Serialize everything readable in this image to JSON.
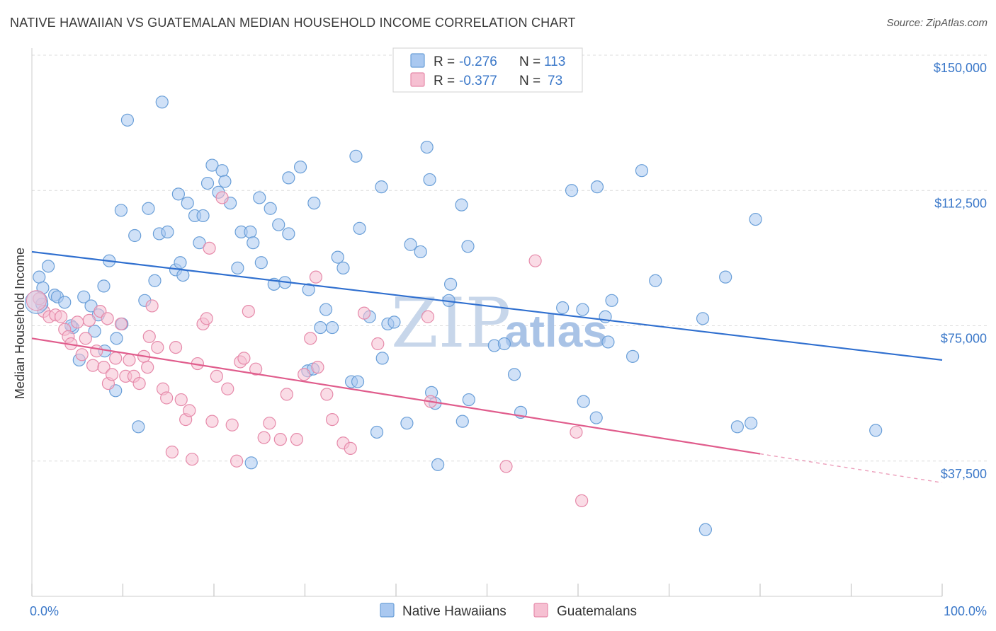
{
  "title": "NATIVE HAWAIIAN VS GUATEMALAN MEDIAN HOUSEHOLD INCOME CORRELATION CHART",
  "source": "Source: ZipAtlas.com",
  "watermark": {
    "zip": "ZIP",
    "atlas": "atlas"
  },
  "legend": {
    "rows": [
      {
        "r_label": "R =",
        "r_value": "-0.276",
        "n_label": "N =",
        "n_value": "113",
        "color": "#a9c8f0",
        "stroke": "#6a9fd8"
      },
      {
        "r_label": "R =",
        "r_value": "-0.377",
        "n_label": "N =",
        "n_value": "73",
        "color": "#f6c0d2",
        "stroke": "#e68aaa"
      }
    ]
  },
  "bottom_legend": [
    {
      "label": "Native Hawaiians",
      "color": "#a9c8f0",
      "stroke": "#6a9fd8"
    },
    {
      "label": "Guatemalans",
      "color": "#f6c0d2",
      "stroke": "#e68aaa"
    }
  ],
  "chart_data": {
    "type": "scatter",
    "title": "NATIVE HAWAIIAN VS GUATEMALAN MEDIAN HOUSEHOLD INCOME CORRELATION CHART",
    "xlabel": "",
    "ylabel": "Median Household Income",
    "xlim": [
      0,
      100
    ],
    "ylim": [
      0,
      155000
    ],
    "x_tick_labels": [
      "0.0%",
      "100.0%"
    ],
    "y_ticks": [
      37500,
      75000,
      112500,
      150000
    ],
    "y_tick_labels": [
      "$37,500",
      "$75,000",
      "$112,500",
      "$150,000"
    ],
    "grid": true,
    "legend_position": "top-center",
    "series": [
      {
        "name": "Native Hawaiians",
        "color": "#6a9fd8",
        "fill": "#a9c8f0",
        "trend": {
          "x": [
            0,
            100
          ],
          "y": [
            95500,
            65500
          ],
          "color": "#2f6fcf"
        },
        "points": [
          [
            10.5,
            132000
          ],
          [
            14.3,
            137000
          ],
          [
            9.8,
            107000
          ],
          [
            11.3,
            100000
          ],
          [
            12.8,
            107500
          ],
          [
            14.0,
            100500
          ],
          [
            14.9,
            101000
          ],
          [
            16.1,
            111500
          ],
          [
            17.1,
            109000
          ],
          [
            17.9,
            105500
          ],
          [
            18.8,
            105500
          ],
          [
            18.4,
            98000
          ],
          [
            19.3,
            114500
          ],
          [
            19.8,
            119500
          ],
          [
            20.5,
            112000
          ],
          [
            20.9,
            118000
          ],
          [
            21.2,
            115000
          ],
          [
            21.8,
            109000
          ],
          [
            23.0,
            101000
          ],
          [
            24.0,
            101000
          ],
          [
            24.3,
            98000
          ],
          [
            25.0,
            110500
          ],
          [
            26.2,
            107500
          ],
          [
            27.1,
            103000
          ],
          [
            28.2,
            100500
          ],
          [
            28.2,
            116000
          ],
          [
            29.5,
            119000
          ],
          [
            31.0,
            109000
          ],
          [
            35.6,
            122000
          ],
          [
            36.0,
            102000
          ],
          [
            38.4,
            113500
          ],
          [
            41.6,
            97500
          ],
          [
            42.7,
            95500
          ],
          [
            43.4,
            124500
          ],
          [
            43.7,
            115500
          ],
          [
            47.2,
            108500
          ],
          [
            47.9,
            97000
          ],
          [
            59.3,
            112500
          ],
          [
            62.1,
            113500
          ],
          [
            67.0,
            118000
          ],
          [
            79.5,
            104500
          ],
          [
            0.8,
            88500
          ],
          [
            1.2,
            85500
          ],
          [
            1.8,
            91500
          ],
          [
            2.5,
            83500
          ],
          [
            2.8,
            83000
          ],
          [
            3.6,
            81500
          ],
          [
            4.5,
            74500
          ],
          [
            5.7,
            83000
          ],
          [
            5.2,
            65500
          ],
          [
            6.5,
            80500
          ],
          [
            6.9,
            73500
          ],
          [
            7.3,
            78000
          ],
          [
            7.9,
            86000
          ],
          [
            8.5,
            93000
          ],
          [
            9.3,
            71500
          ],
          [
            9.9,
            75500
          ],
          [
            12.4,
            82000
          ],
          [
            13.5,
            87500
          ],
          [
            15.8,
            90500
          ],
          [
            16.6,
            89000
          ],
          [
            16.3,
            92500
          ],
          [
            22.6,
            91000
          ],
          [
            25.2,
            92500
          ],
          [
            26.6,
            86500
          ],
          [
            27.8,
            87000
          ],
          [
            30.4,
            85000
          ],
          [
            32.3,
            79500
          ],
          [
            31.7,
            74500
          ],
          [
            33.0,
            74500
          ],
          [
            34.2,
            91000
          ],
          [
            33.6,
            94000
          ],
          [
            37.1,
            77500
          ],
          [
            39.1,
            75500
          ],
          [
            39.8,
            76000
          ],
          [
            38.5,
            66000
          ],
          [
            30.3,
            62500
          ],
          [
            30.9,
            63000
          ],
          [
            35.1,
            59500
          ],
          [
            35.8,
            59500
          ],
          [
            43.9,
            56500
          ],
          [
            46.0,
            86500
          ],
          [
            45.8,
            82000
          ],
          [
            50.8,
            69500
          ],
          [
            51.9,
            70000
          ],
          [
            53.0,
            61500
          ],
          [
            58.3,
            80000
          ],
          [
            60.5,
            79500
          ],
          [
            63.0,
            77500
          ],
          [
            63.3,
            70500
          ],
          [
            63.7,
            82000
          ],
          [
            66.0,
            66500
          ],
          [
            68.5,
            87500
          ],
          [
            73.7,
            77000
          ],
          [
            76.2,
            88500
          ],
          [
            47.3,
            48500
          ],
          [
            48.0,
            54500
          ],
          [
            53.7,
            51000
          ],
          [
            60.6,
            54000
          ],
          [
            62.0,
            49500
          ],
          [
            44.3,
            53500
          ],
          [
            41.2,
            48000
          ],
          [
            37.9,
            45500
          ],
          [
            24.1,
            37000
          ],
          [
            44.6,
            36500
          ],
          [
            11.7,
            47000
          ],
          [
            9.2,
            57000
          ],
          [
            77.5,
            47000
          ],
          [
            92.7,
            46000
          ],
          [
            79.0,
            48000
          ],
          [
            74.0,
            18500
          ],
          [
            4.3,
            75000
          ],
          [
            1.1,
            81000
          ],
          [
            8.0,
            68000
          ]
        ]
      },
      {
        "name": "Guatemalans",
        "color": "#e68aaa",
        "fill": "#f6c0d2",
        "trend": {
          "x": [
            0,
            80
          ],
          "y": [
            71500,
            39500
          ],
          "dashed_to": [
            100,
            31500
          ],
          "color": "#e05c8c"
        },
        "points": [
          [
            0.8,
            82500
          ],
          [
            1.3,
            79000
          ],
          [
            1.9,
            77500
          ],
          [
            2.6,
            78000
          ],
          [
            3.2,
            77500
          ],
          [
            3.6,
            74000
          ],
          [
            4.0,
            72000
          ],
          [
            4.3,
            70000
          ],
          [
            5.0,
            76000
          ],
          [
            5.5,
            67000
          ],
          [
            5.9,
            71500
          ],
          [
            6.3,
            76500
          ],
          [
            6.7,
            64000
          ],
          [
            7.1,
            68000
          ],
          [
            7.5,
            79000
          ],
          [
            7.9,
            63500
          ],
          [
            8.4,
            59000
          ],
          [
            8.8,
            61500
          ],
          [
            9.2,
            66000
          ],
          [
            9.8,
            75500
          ],
          [
            10.3,
            61000
          ],
          [
            10.7,
            65500
          ],
          [
            11.2,
            61000
          ],
          [
            11.8,
            59000
          ],
          [
            12.3,
            66500
          ],
          [
            12.7,
            63500
          ],
          [
            13.2,
            80500
          ],
          [
            13.8,
            69000
          ],
          [
            14.4,
            57500
          ],
          [
            14.8,
            55000
          ],
          [
            15.4,
            40000
          ],
          [
            15.8,
            69000
          ],
          [
            16.4,
            54500
          ],
          [
            16.9,
            49000
          ],
          [
            17.3,
            51500
          ],
          [
            17.6,
            38000
          ],
          [
            18.2,
            64500
          ],
          [
            18.8,
            75500
          ],
          [
            19.2,
            77000
          ],
          [
            19.5,
            96500
          ],
          [
            19.8,
            48500
          ],
          [
            20.3,
            61000
          ],
          [
            20.9,
            110500
          ],
          [
            21.5,
            57500
          ],
          [
            22.0,
            47500
          ],
          [
            22.5,
            37500
          ],
          [
            22.9,
            65000
          ],
          [
            23.3,
            66000
          ],
          [
            23.8,
            79000
          ],
          [
            24.6,
            63000
          ],
          [
            25.5,
            44000
          ],
          [
            26.1,
            48000
          ],
          [
            27.3,
            43500
          ],
          [
            29.1,
            43500
          ],
          [
            28.0,
            56000
          ],
          [
            29.9,
            61500
          ],
          [
            30.6,
            71500
          ],
          [
            31.4,
            63500
          ],
          [
            32.4,
            56000
          ],
          [
            33.0,
            49000
          ],
          [
            34.2,
            42500
          ],
          [
            35.0,
            41000
          ],
          [
            36.5,
            78500
          ],
          [
            38.0,
            70000
          ],
          [
            43.5,
            77500
          ],
          [
            43.8,
            54000
          ],
          [
            52.1,
            36000
          ],
          [
            55.3,
            93000
          ],
          [
            59.8,
            45500
          ],
          [
            60.4,
            26500
          ],
          [
            31.2,
            88500
          ],
          [
            8.3,
            77000
          ],
          [
            12.9,
            72000
          ]
        ]
      }
    ]
  }
}
